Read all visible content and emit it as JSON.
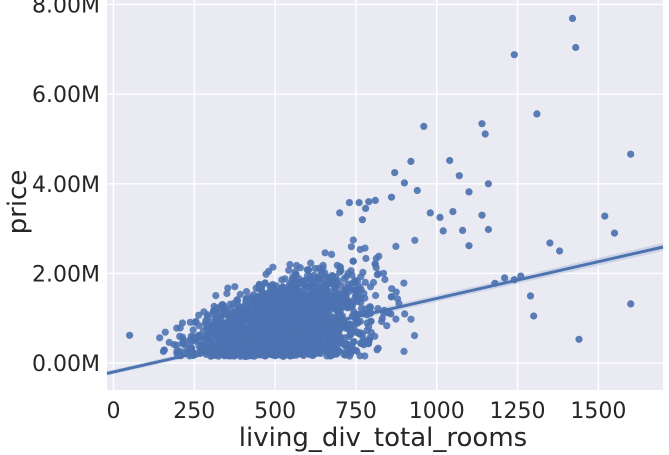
{
  "chart_data": {
    "type": "scatter",
    "title": "",
    "xlabel": "living_div_total_rooms",
    "ylabel": "price",
    "xlim": [
      -20,
      1700
    ],
    "ylim": [
      -600000,
      8100000
    ],
    "x_ticks": [
      0,
      250,
      500,
      750,
      1000,
      1250,
      1500
    ],
    "x_tick_labels": [
      "0",
      "250",
      "500",
      "750",
      "1000",
      "1250",
      "1500"
    ],
    "y_ticks": [
      0,
      2000000,
      4000000,
      6000000,
      8000000
    ],
    "y_tick_labels": [
      "0.00M",
      "2.00M",
      "4.00M",
      "6.00M",
      "8.00M"
    ],
    "grid": true,
    "colors": {
      "background": "#eaeaf2",
      "grid": "#ffffff",
      "points": "#4c72b0",
      "line": "#4c72b0"
    },
    "regression_line": {
      "x": [
        -20,
        1700
      ],
      "y": [
        -230000,
        2590000
      ]
    },
    "outliers": {
      "x": [
        50,
        960,
        1140,
        1150,
        1160,
        1310,
        1240,
        1420,
        1430,
        1600,
        1520,
        1550,
        1380,
        1350,
        1290,
        1240,
        1180,
        1100,
        1160,
        1440,
        1600,
        1300,
        1260,
        1210,
        1100,
        1050,
        1020,
        980,
        940,
        920,
        900,
        870,
        860,
        810,
        790,
        780,
        770,
        760,
        730,
        700,
        1010,
        1040,
        1070,
        1140,
        1080
      ],
      "y": [
        620000,
        5280000,
        5340000,
        5110000,
        4000000,
        5560000,
        6880000,
        7690000,
        7040000,
        4660000,
        3280000,
        2900000,
        2500000,
        2680000,
        1500000,
        1860000,
        1780000,
        3820000,
        2980000,
        530000,
        1320000,
        1050000,
        1940000,
        1900000,
        2620000,
        3380000,
        2950000,
        3350000,
        3850000,
        4500000,
        4020000,
        4250000,
        3700000,
        3630000,
        3600000,
        3450000,
        3200000,
        3580000,
        3580000,
        3350000,
        3250000,
        4520000,
        4180000,
        3300000,
        2960000
      ]
    },
    "cluster": {
      "count": 2200,
      "x_range": [
        120,
        1050
      ],
      "y_floor": 150000
    }
  }
}
